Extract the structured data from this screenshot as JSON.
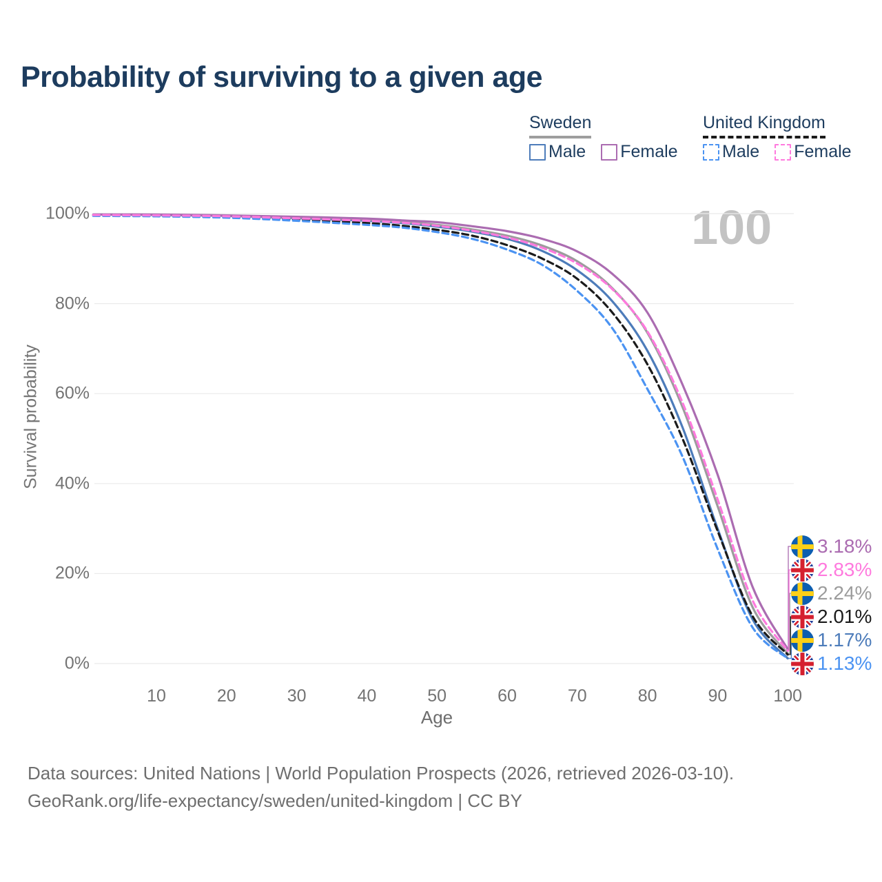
{
  "header": {
    "title": "Probability of surviving to a given age"
  },
  "legend": {
    "groups": [
      {
        "name": "Sweden",
        "line_style": "solid",
        "underline_color": "#9e9e9e",
        "items": [
          {
            "label": "Male",
            "color": "#4d7cba"
          },
          {
            "label": "Female",
            "color": "#ab6cb1"
          }
        ]
      },
      {
        "name": "United Kingdom",
        "line_style": "dashed",
        "underline_color": "#1b1b1b",
        "items": [
          {
            "label": "Male",
            "color": "#4b93f2"
          },
          {
            "label": "Female",
            "color": "#ff7ade"
          }
        ]
      }
    ]
  },
  "watermark_age": "100",
  "axes": {
    "y_title": "Survival probability",
    "x_title": "Age",
    "y_tick_labels": [
      "100%",
      "80%",
      "60%",
      "40%",
      "20%",
      "0%"
    ],
    "y_tick_values": [
      100,
      80,
      60,
      40,
      20,
      0
    ],
    "x_tick_labels": [
      "10",
      "20",
      "30",
      "40",
      "50",
      "60",
      "70",
      "80",
      "90",
      "100"
    ],
    "x_tick_values": [
      10,
      20,
      30,
      40,
      50,
      60,
      70,
      80,
      90,
      100
    ]
  },
  "chart_data": {
    "type": "line",
    "title": "Probability of surviving to a given age",
    "xlabel": "Age",
    "ylabel": "Survival probability",
    "xlim": [
      1,
      100
    ],
    "ylim": [
      0,
      100
    ],
    "grid": true,
    "legend_position": "top-right",
    "x": [
      1,
      10,
      20,
      30,
      40,
      45,
      50,
      55,
      60,
      65,
      70,
      75,
      80,
      85,
      90,
      95,
      100
    ],
    "series": [
      {
        "country": "Sweden",
        "group": "female",
        "flag": "sweden",
        "color": "#ab6cb1",
        "dash": "solid",
        "end_label": "3.18%",
        "values": [
          99.8,
          99.8,
          99.6,
          99.3,
          98.9,
          98.5,
          98.1,
          97.2,
          96.1,
          94.4,
          91.6,
          86.6,
          78.0,
          62.0,
          42.0,
          17.0,
          3.18
        ]
      },
      {
        "country": "United Kingdom",
        "group": "female",
        "flag": "uk",
        "color": "#ff7ade",
        "dash": "dashed",
        "end_label": "2.83%",
        "values": [
          99.7,
          99.6,
          99.4,
          98.95,
          98.4,
          98.0,
          97.3,
          96.2,
          94.7,
          92.4,
          88.9,
          83.2,
          73.8,
          58.0,
          36.5,
          14.0,
          2.83
        ]
      },
      {
        "country": "Sweden",
        "group": "both",
        "flag": "sweden",
        "color": "#9c9c9c",
        "dash": "solid",
        "end_label": "2.24%",
        "values": [
          99.8,
          99.75,
          99.55,
          99.15,
          98.65,
          98.2,
          97.5,
          96.5,
          95.1,
          92.9,
          89.4,
          83.4,
          73.5,
          57.0,
          35.0,
          12.5,
          2.24
        ]
      },
      {
        "country": "United Kingdom",
        "group": "both",
        "flag": "uk",
        "color": "#1b1b1b",
        "dash": "dashed",
        "end_label": "2.01%",
        "values": [
          99.6,
          99.5,
          99.25,
          98.65,
          97.9,
          97.3,
          96.4,
          95.1,
          93.0,
          90.0,
          85.5,
          78.0,
          66.5,
          50.0,
          29.5,
          10.5,
          2.01
        ]
      },
      {
        "country": "Sweden",
        "group": "male",
        "flag": "sweden",
        "color": "#4d7cba",
        "dash": "solid",
        "end_label": "1.17%",
        "values": [
          99.8,
          99.7,
          99.5,
          99.0,
          98.4,
          97.9,
          97.1,
          96.0,
          94.4,
          91.7,
          87.4,
          80.5,
          69.5,
          52.5,
          30.0,
          9.8,
          1.17
        ]
      },
      {
        "country": "United Kingdom",
        "group": "male",
        "flag": "uk",
        "color": "#4b93f2",
        "dash": "dashed",
        "end_label": "1.13%",
        "values": [
          99.5,
          99.4,
          99.1,
          98.4,
          97.5,
          96.9,
          95.9,
          94.4,
          92.0,
          88.6,
          82.8,
          74.5,
          61.0,
          46.0,
          25.5,
          8.0,
          1.13
        ]
      }
    ]
  },
  "footer": {
    "line1": "Data sources: United Nations | World Population Prospects (2026, retrieved 2026-03-10).",
    "line2": "GeoRank.org/life-expectancy/sweden/united-kingdom | CC BY"
  }
}
